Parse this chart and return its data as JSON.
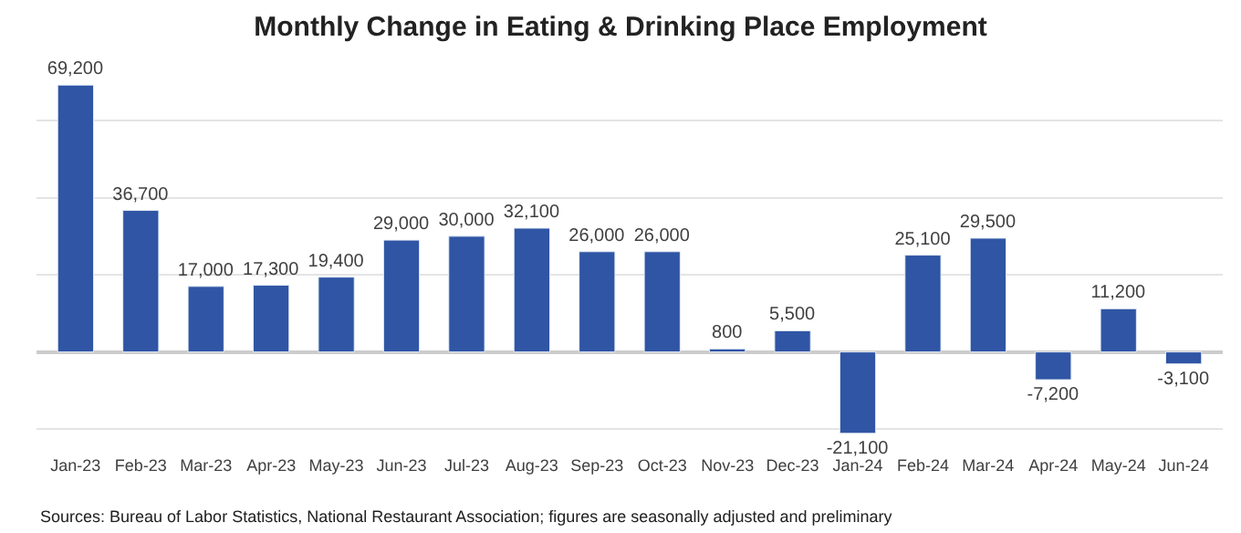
{
  "chart_data": {
    "type": "bar",
    "title": "Monthly Change in Eating & Drinking Place Employment",
    "categories": [
      "Jan-23",
      "Feb-23",
      "Mar-23",
      "Apr-23",
      "May-23",
      "Jun-23",
      "Jul-23",
      "Aug-23",
      "Sep-23",
      "Oct-23",
      "Nov-23",
      "Dec-23",
      "Jan-24",
      "Feb-24",
      "Mar-24",
      "Apr-24",
      "May-24",
      "Jun-24"
    ],
    "values": [
      69200,
      36700,
      17000,
      17300,
      19400,
      29000,
      30000,
      32100,
      26000,
      26000,
      800,
      5500,
      -21100,
      25100,
      29500,
      -7200,
      11200,
      -3100
    ],
    "color": "#2f55a4",
    "value_labels": [
      "69,200",
      "36,700",
      "17,000",
      "17,300",
      "19,400",
      "29,000",
      "30,000",
      "32,100",
      "26,000",
      "26,000",
      "800",
      "5,500",
      "-21,100",
      "25,100",
      "29,500",
      "-7,200",
      "11,200",
      "-3,100"
    ],
    "grid": "y",
    "tick_labels": "x",
    "legend": false,
    "annotations": [
      "Sources: Bureau of Labor Statistics, National Restaurant Association; figures are seasonally adjusted and preliminary"
    ]
  }
}
